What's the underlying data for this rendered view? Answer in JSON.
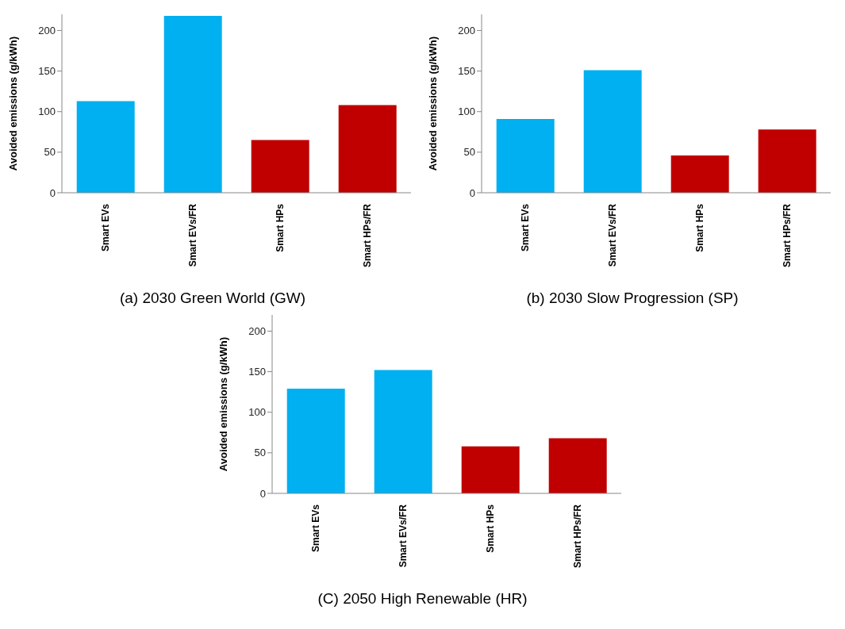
{
  "chart_data": [
    {
      "type": "bar",
      "title": "(a) 2030 Green World (GW)",
      "ylabel": "Avoided emissions (g/kWh)",
      "categories": [
        "Smart EVs",
        "Smart EVs/FR",
        "Smart HPs",
        "Smart HPs/FR"
      ],
      "values": [
        113,
        218,
        65,
        108
      ],
      "colors": [
        "#00b0f0",
        "#00b0f0",
        "#c00000",
        "#c00000"
      ],
      "ylim": [
        0,
        220
      ],
      "yticks": [
        0,
        50,
        100,
        150,
        200
      ]
    },
    {
      "type": "bar",
      "title": "(b) 2030 Slow Progression (SP)",
      "ylabel": "Avoided emissions (g/kWh)",
      "categories": [
        "Smart EVs",
        "Smart EVs/FR",
        "Smart HPs",
        "Smart HPs/FR"
      ],
      "values": [
        91,
        151,
        46,
        78
      ],
      "colors": [
        "#00b0f0",
        "#00b0f0",
        "#c00000",
        "#c00000"
      ],
      "ylim": [
        0,
        220
      ],
      "yticks": [
        0,
        50,
        100,
        150,
        200
      ]
    },
    {
      "type": "bar",
      "title": "(C) 2050 High Renewable (HR)",
      "ylabel": "Avoided emissions (g/kWh)",
      "categories": [
        "Smart EVs",
        "Smart EVs/FR",
        "Smart HPs",
        "Smart HPs/FR"
      ],
      "values": [
        129,
        152,
        58,
        68
      ],
      "colors": [
        "#00b0f0",
        "#00b0f0",
        "#c00000",
        "#c00000"
      ],
      "ylim": [
        0,
        220
      ],
      "yticks": [
        0,
        50,
        100,
        150,
        200
      ]
    }
  ]
}
